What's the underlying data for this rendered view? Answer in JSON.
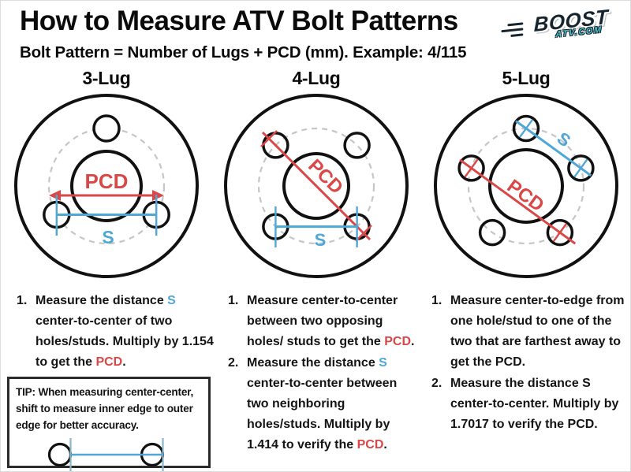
{
  "header": {
    "title": "How to Measure ATV Bolt Patterns",
    "subtitle": "Bolt Pattern = Number of Lugs + PCD (mm). Example: 4/115",
    "logo": {
      "brand": "BOOST",
      "domain": "ATV.COM"
    }
  },
  "colors": {
    "red": "#d94747",
    "blue": "#4fa7d6",
    "black": "#141414",
    "dashed_gray": "#c6c6c6",
    "tip_tick_blue": "#8ab7c9",
    "logo_dark": "#16242e",
    "logo_teal": "#4fc2cf"
  },
  "diagrams": [
    {
      "label": "3-Lug",
      "pcd_label": "PCD",
      "s_label": "S"
    },
    {
      "label": "4-Lug",
      "pcd_label": "PCD",
      "s_label": "S"
    },
    {
      "label": "5-Lug",
      "pcd_label": "PCD",
      "s_label": "S"
    }
  ],
  "instructions": [
    {
      "steps": [
        {
          "num": "1.",
          "segments": [
            {
              "t": "Measure the distance "
            },
            {
              "t": "S",
              "c": "blue"
            },
            {
              "t": " center-to-center of two holes/studs. Multiply by 1.154 to get the "
            },
            {
              "t": "PCD",
              "c": "red"
            },
            {
              "t": "."
            }
          ]
        }
      ]
    },
    {
      "steps": [
        {
          "num": "1.",
          "segments": [
            {
              "t": "Measure center-to-center between two opposing holes/ studs to get the "
            },
            {
              "t": "PCD",
              "c": "red"
            },
            {
              "t": "."
            }
          ]
        },
        {
          "num": "2.",
          "segments": [
            {
              "t": "Measure the distance "
            },
            {
              "t": "S",
              "c": "blue"
            },
            {
              "t": " center-to-center between two neighboring holes/studs. Multiply by 1.414 to verify the "
            },
            {
              "t": "PCD",
              "c": "red"
            },
            {
              "t": "."
            }
          ]
        }
      ]
    },
    {
      "steps": [
        {
          "num": "1.",
          "segments": [
            {
              "t": "Measure center-to-edge from one hole/stud to one of the two that are farthest away to get the PCD."
            }
          ]
        },
        {
          "num": "2.",
          "segments": [
            {
              "t": "Measure the distance S center-to-center. Multiply by 1.7017 to verify the PCD."
            }
          ]
        }
      ]
    }
  ],
  "tip": {
    "text": "TIP: When measuring center-center, shift to measure inner edge to outer edge for better accuracy."
  }
}
